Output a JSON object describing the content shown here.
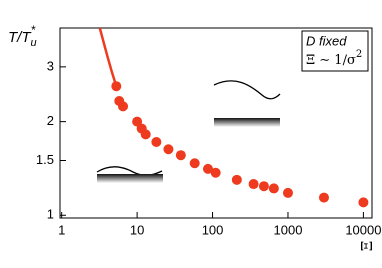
{
  "chart_data": {
    "type": "scatter",
    "x_label": "Ξ",
    "y_label": "T/T",
    "y_label_sub": "u",
    "y_label_sup": "*",
    "annotation_line1": "D fixed",
    "annotation_line2": "Ξ ∼ 1/σ",
    "annotation_line2_sup": "2",
    "log_x": true,
    "log_y": true,
    "xlim": [
      0.95,
      13000
    ],
    "ylim": [
      0.98,
      4
    ],
    "xticks": [
      1,
      10,
      100,
      1000,
      10000
    ],
    "yticks": [
      1,
      1.5,
      2,
      3
    ],
    "series": [
      {
        "kind": "line",
        "color": "#ee3a1e",
        "x": [
          3.2,
          3.6,
          4.1,
          4.6,
          5.3
        ],
        "values": [
          4.0,
          3.6,
          3.2,
          2.9,
          2.6
        ]
      },
      {
        "kind": "points",
        "color": "#ee3a1e",
        "x": [
          5.3,
          5.8,
          6.5,
          10,
          11.5,
          13,
          18,
          26,
          38,
          58,
          87,
          110,
          210,
          350,
          480,
          650,
          1000,
          3000,
          10000
        ],
        "values": [
          2.6,
          2.33,
          2.24,
          2.0,
          1.9,
          1.82,
          1.72,
          1.63,
          1.56,
          1.47,
          1.41,
          1.37,
          1.3,
          1.26,
          1.24,
          1.22,
          1.18,
          1.14,
          1.1
        ]
      }
    ]
  }
}
